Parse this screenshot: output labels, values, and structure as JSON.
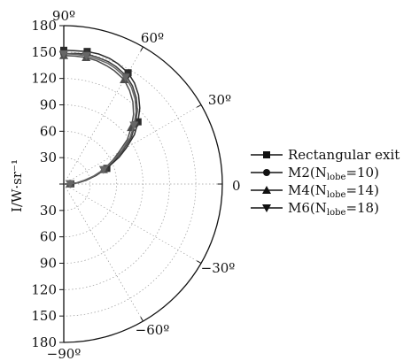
{
  "chart_data": {
    "type": "line",
    "subtype": "polar-half",
    "ylabel": "I/W·sr⁻¹",
    "radial_range": [
      0,
      180
    ],
    "radial_ticks": [
      0,
      30,
      60,
      90,
      120,
      150,
      180
    ],
    "radial_tick_labels": {
      "upper": [
        "180",
        "150",
        "120",
        "90",
        "60",
        "30"
      ],
      "lower": [
        "30",
        "60",
        "90",
        "120",
        "150",
        "180"
      ]
    },
    "angle_range_deg": [
      -90,
      90
    ],
    "angle_ticks_deg": [
      90,
      60,
      30,
      0,
      -30,
      -60,
      -90
    ],
    "angle_tick_labels": [
      "90º",
      "60º",
      "30º",
      "0",
      "−30º",
      "−60º",
      "−90º"
    ],
    "grid": true,
    "legend_placement": "right",
    "series": [
      {
        "name": "Rectangular exit",
        "marker": "square",
        "points": [
          [
            0,
            0
          ],
          [
            2,
            8
          ],
          [
            5,
            16
          ],
          [
            10,
            26
          ],
          [
            15,
            38
          ],
          [
            20,
            52
          ],
          [
            26,
            70
          ],
          [
            30,
            82
          ],
          [
            35,
            98
          ],
          [
            40,
            110
          ],
          [
            45,
            122
          ],
          [
            50,
            132
          ],
          [
            55,
            140
          ],
          [
            60,
            146
          ],
          [
            66,
            150
          ],
          [
            70,
            152
          ],
          [
            75,
            153
          ],
          [
            80,
            153
          ],
          [
            85,
            152
          ],
          [
            90,
            152
          ]
        ]
      },
      {
        "name": "M2(N_lobe=10)",
        "marker": "circle",
        "points": [
          [
            0,
            0
          ],
          [
            2,
            8
          ],
          [
            5,
            16
          ],
          [
            10,
            26
          ],
          [
            15,
            38
          ],
          [
            20,
            50
          ],
          [
            26,
            66
          ],
          [
            30,
            78
          ],
          [
            35,
            94
          ],
          [
            40,
            106
          ],
          [
            45,
            118
          ],
          [
            50,
            128
          ],
          [
            55,
            136
          ],
          [
            60,
            142
          ],
          [
            66,
            146
          ],
          [
            70,
            148
          ],
          [
            75,
            149
          ],
          [
            80,
            150
          ],
          [
            85,
            149
          ],
          [
            90,
            148
          ]
        ]
      },
      {
        "name": "M4(N_lobe=14)",
        "marker": "triangle-up",
        "points": [
          [
            0,
            0
          ],
          [
            2,
            7
          ],
          [
            5,
            15
          ],
          [
            10,
            24
          ],
          [
            15,
            36
          ],
          [
            20,
            48
          ],
          [
            26,
            62
          ],
          [
            30,
            72
          ],
          [
            35,
            88
          ],
          [
            40,
            100
          ],
          [
            45,
            112
          ],
          [
            50,
            122
          ],
          [
            55,
            130
          ],
          [
            60,
            137
          ],
          [
            66,
            141
          ],
          [
            70,
            143
          ],
          [
            75,
            145
          ],
          [
            80,
            146
          ],
          [
            85,
            146
          ],
          [
            90,
            146
          ]
        ]
      },
      {
        "name": "M6(N_lobe=18)",
        "marker": "triangle-down",
        "points": [
          [
            0,
            0
          ],
          [
            2,
            7
          ],
          [
            5,
            14
          ],
          [
            10,
            23
          ],
          [
            15,
            35
          ],
          [
            20,
            48
          ],
          [
            26,
            64
          ],
          [
            30,
            76
          ],
          [
            35,
            92
          ],
          [
            40,
            104
          ],
          [
            45,
            116
          ],
          [
            50,
            126
          ],
          [
            55,
            134
          ],
          [
            60,
            140
          ],
          [
            66,
            144
          ],
          [
            70,
            146
          ],
          [
            75,
            147
          ],
          [
            80,
            148
          ],
          [
            85,
            148
          ],
          [
            90,
            148
          ]
        ]
      }
    ],
    "series_display_names": [
      "Rectangular exit",
      "M2(N",
      "M4(N",
      "M6(N"
    ],
    "series_display_subs": [
      "",
      "lobe",
      "lobe",
      "lobe"
    ],
    "series_display_tails": [
      "",
      "=10)",
      "=14)",
      "=18)"
    ]
  }
}
